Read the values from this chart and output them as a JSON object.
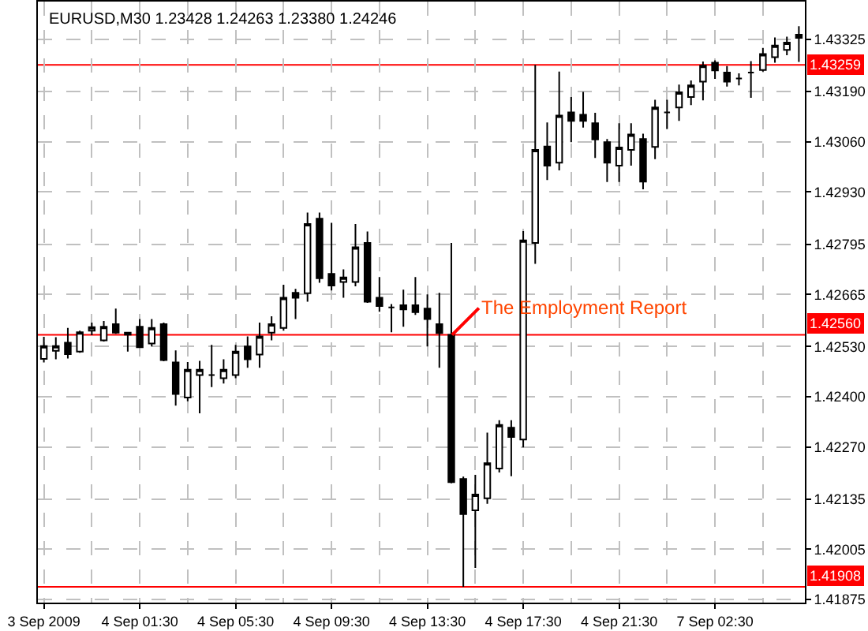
{
  "chart_data": {
    "type": "candlestick",
    "title": "EURUSD,M30 1.23428 1.24263 1.23380 1.24246",
    "categories": [
      "3 Sep 2009",
      null,
      null,
      null,
      null,
      null,
      null,
      null,
      "4 Sep 01:30",
      null,
      null,
      null,
      null,
      null,
      null,
      null,
      "4 Sep 05:30",
      null,
      null,
      null,
      null,
      null,
      null,
      null,
      "4 Sep 09:30",
      null,
      null,
      null,
      null,
      null,
      null,
      null,
      "4 Sep 13:30",
      null,
      null,
      null,
      null,
      null,
      null,
      null,
      "4 Sep 17:30",
      null,
      null,
      null,
      null,
      null,
      null,
      null,
      "4 Sep 21:30",
      null,
      null,
      null,
      null,
      null,
      null,
      null,
      "7 Sep 02:30",
      null,
      null,
      null,
      null,
      null,
      null,
      null
    ],
    "ohlc": [
      [
        1.42498,
        1.42555,
        1.42489,
        1.42531
      ],
      [
        1.42519,
        1.42554,
        1.42497,
        1.42531
      ],
      [
        1.4254,
        1.42578,
        1.42499,
        1.4251
      ],
      [
        1.42517,
        1.42571,
        1.42514,
        1.42567
      ],
      [
        1.42571,
        1.42592,
        1.42559,
        1.4258
      ],
      [
        1.42546,
        1.42596,
        1.42543,
        1.42581
      ],
      [
        1.42588,
        1.42628,
        1.42563,
        1.42566
      ],
      [
        1.42561,
        1.42567,
        1.42517,
        1.42566
      ],
      [
        1.42581,
        1.42601,
        1.42526,
        1.42528
      ],
      [
        1.42538,
        1.42601,
        1.4253,
        1.42578
      ],
      [
        1.42588,
        1.42592,
        1.42492,
        1.42495
      ],
      [
        1.42489,
        1.4252,
        1.42377,
        1.42407
      ],
      [
        1.42398,
        1.4249,
        1.42388,
        1.4247
      ],
      [
        1.42456,
        1.42493,
        1.42357,
        1.4247
      ],
      [
        1.42456,
        1.42534,
        1.42425,
        1.42456
      ],
      [
        1.42448,
        1.42497,
        1.42434,
        1.4247
      ],
      [
        1.42456,
        1.42534,
        1.42448,
        1.42517
      ],
      [
        1.4253,
        1.42556,
        1.42475,
        1.42497
      ],
      [
        1.42509,
        1.42592,
        1.42475,
        1.42556
      ],
      [
        1.42566,
        1.42608,
        1.42546,
        1.42588
      ],
      [
        1.42578,
        1.4269,
        1.42571,
        1.42656
      ],
      [
        1.42669,
        1.42679,
        1.42601,
        1.42656
      ],
      [
        1.42668,
        1.42877,
        1.42646,
        1.42847
      ],
      [
        1.42861,
        1.42877,
        1.42695,
        1.42707
      ],
      [
        1.42718,
        1.4285,
        1.42675,
        1.42688
      ],
      [
        1.42697,
        1.4273,
        1.42656,
        1.42709
      ],
      [
        1.42697,
        1.42847,
        1.42686,
        1.42787
      ],
      [
        1.42798,
        1.42828,
        1.42643,
        1.42646
      ],
      [
        1.42656,
        1.4271,
        1.4262,
        1.42635
      ],
      [
        1.42631,
        1.4264,
        1.42567,
        1.42631
      ],
      [
        1.42637,
        1.42677,
        1.42581,
        1.42626
      ],
      [
        1.42637,
        1.4271,
        1.42612,
        1.42619
      ],
      [
        1.42628,
        1.42665,
        1.4253,
        1.42601
      ],
      [
        1.42588,
        1.42669,
        1.42475,
        1.42565
      ],
      [
        1.4256,
        1.42798,
        1.42176,
        1.42179
      ],
      [
        1.42187,
        1.42193,
        1.41908,
        1.42096
      ],
      [
        1.42106,
        1.42198,
        1.41957,
        1.42147
      ],
      [
        1.42137,
        1.42307,
        1.42123,
        1.42228
      ],
      [
        1.42214,
        1.42339,
        1.42204,
        1.42327
      ],
      [
        1.4232,
        1.42339,
        1.42194,
        1.42296
      ],
      [
        1.42289,
        1.42829,
        1.42269,
        1.42805
      ],
      [
        1.42798,
        1.43259,
        1.42744,
        1.43039
      ],
      [
        1.43048,
        1.4311,
        1.42961,
        1.42998
      ],
      [
        1.43006,
        1.43242,
        1.42986,
        1.43128
      ],
      [
        1.43136,
        1.43176,
        1.43059,
        1.43114
      ],
      [
        1.4313,
        1.43189,
        1.43097,
        1.43114
      ],
      [
        1.43108,
        1.43135,
        1.43018,
        1.43066
      ],
      [
        1.43059,
        1.43067,
        1.42956,
        1.43006
      ],
      [
        1.42998,
        1.43108,
        1.42956,
        1.43045
      ],
      [
        1.43039,
        1.43108,
        1.42998,
        1.43079
      ],
      [
        1.43067,
        1.43081,
        1.42937,
        1.42957
      ],
      [
        1.43047,
        1.43169,
        1.43015,
        1.43149
      ],
      [
        1.43136,
        1.43169,
        1.43093,
        1.43136
      ],
      [
        1.43149,
        1.43208,
        1.43114,
        1.43188
      ],
      [
        1.43176,
        1.43219,
        1.43155,
        1.43206
      ],
      [
        1.43216,
        1.43268,
        1.43167,
        1.43257
      ],
      [
        1.43265,
        1.43271,
        1.43223,
        1.43245
      ],
      [
        1.43239,
        1.43256,
        1.43203,
        1.43216
      ],
      [
        1.43224,
        1.43237,
        1.43206,
        1.43224
      ],
      [
        1.43239,
        1.43269,
        1.43174,
        1.43239
      ],
      [
        1.43246,
        1.43303,
        1.43242,
        1.43287
      ],
      [
        1.43279,
        1.4333,
        1.43265,
        1.43309
      ],
      [
        1.43298,
        1.43332,
        1.43284,
        1.43317
      ],
      [
        1.43329,
        1.43359,
        1.43267,
        1.43337
      ]
    ],
    "ylim": [
      1.41867,
      1.43423
    ],
    "yticks": [
      1.41875,
      1.42005,
      1.42135,
      {
        "value": 1.4227,
        "label": "1.42270"
      },
      {
        "value": 1.424,
        "label": "1.42400"
      },
      {
        "value": 1.4253,
        "label": "1.42530"
      },
      1.42665,
      1.42795,
      {
        "value": 1.4293,
        "label": "1.42930"
      },
      {
        "value": 1.4306,
        "label": "1.43060"
      },
      {
        "value": 1.4319,
        "label": "1.43190"
      },
      1.43325
    ],
    "grid": true,
    "ref_lines": [
      {
        "axis": "y",
        "value": 1.43259,
        "label": "1.43259",
        "color": "#ff0000",
        "line_style": "solid"
      },
      {
        "axis": "y",
        "value": 1.4256,
        "label": "1.42560",
        "color": "#ff0000",
        "line_style": "solid"
      },
      {
        "axis": "y",
        "value": 1.41908,
        "label": "1.41908",
        "color": "#ff0000",
        "line_style": "solid"
      }
    ],
    "annotations": [
      {
        "text": "The Employment Report",
        "y": 1.4256
      }
    ]
  }
}
